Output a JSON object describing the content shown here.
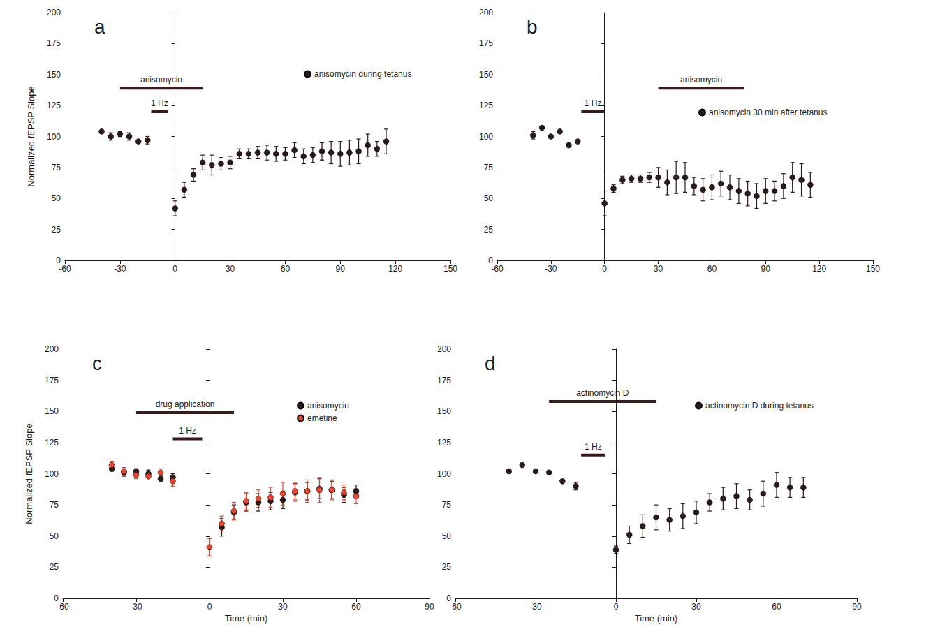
{
  "chart_data": [
    {
      "type": "scatter",
      "title": "a",
      "ylabel": "Normalized fEPSP Slope",
      "xlim": [
        -60,
        150
      ],
      "xticks": [
        -60,
        -30,
        0,
        30,
        60,
        90,
        120,
        150
      ],
      "ylim": [
        0,
        200
      ],
      "yticks": [
        0,
        25,
        50,
        75,
        100,
        125,
        150,
        175,
        200
      ],
      "grid": false,
      "legend": "upper right",
      "series": [
        {
          "name": "anisomycin during tetanus",
          "color": "#2b1a1a",
          "marker": "circle",
          "x": [
            -40,
            -35,
            -30,
            -25,
            -20,
            -15,
            0,
            5,
            10,
            15,
            20,
            25,
            30,
            35,
            40,
            45,
            50,
            55,
            60,
            65,
            70,
            75,
            80,
            85,
            90,
            95,
            100,
            105,
            110,
            115
          ],
          "values": [
            104,
            100,
            102,
            100,
            96,
            97,
            42,
            57,
            69,
            79,
            77,
            78,
            79,
            86,
            86,
            87,
            87,
            86,
            86,
            89,
            84,
            85,
            88,
            87,
            86,
            87,
            88,
            93,
            90,
            96
          ],
          "errors": [
            1,
            3,
            2,
            3,
            1,
            3,
            6,
            6,
            5,
            6,
            8,
            5,
            5,
            4,
            4,
            5,
            6,
            6,
            5,
            6,
            6,
            6,
            7,
            9,
            10,
            10,
            10,
            9,
            6,
            10
          ]
        }
      ],
      "annotations": [
        {
          "label": "anisomycin",
          "start": -30,
          "end": 15,
          "y": 139
        },
        {
          "label": "1 Hz",
          "start": -13,
          "end": -4,
          "y": 120
        }
      ]
    },
    {
      "type": "scatter",
      "title": "b",
      "xlim": [
        -60,
        150
      ],
      "xticks": [
        -60,
        -30,
        0,
        30,
        60,
        90,
        120,
        150
      ],
      "ylim": [
        0,
        200
      ],
      "yticks": [
        0,
        25,
        50,
        75,
        100,
        125,
        150,
        175,
        200
      ],
      "grid": false,
      "legend": "upper right",
      "series": [
        {
          "name": "anisomycin 30 min after tetanus",
          "color": "#2b1a1a",
          "marker": "circle",
          "x": [
            -40,
            -35,
            -30,
            -25,
            -20,
            -15,
            0,
            5,
            10,
            15,
            20,
            25,
            30,
            35,
            40,
            45,
            50,
            55,
            60,
            65,
            70,
            75,
            80,
            85,
            90,
            95,
            100,
            105,
            110,
            115
          ],
          "values": [
            101,
            107,
            100,
            104,
            93,
            96,
            46,
            58,
            65,
            66,
            66,
            67,
            67,
            63,
            67,
            67,
            60,
            57,
            59,
            62,
            59,
            56,
            54,
            52,
            56,
            56,
            60,
            67,
            65,
            61
          ],
          "errors": [
            3,
            1,
            1,
            1,
            1,
            1,
            10,
            3,
            3,
            3,
            3,
            4,
            8,
            10,
            13,
            12,
            7,
            9,
            10,
            10,
            10,
            10,
            10,
            10,
            10,
            8,
            10,
            12,
            13,
            10
          ]
        }
      ],
      "annotations": [
        {
          "label": "anisomycin",
          "start": 30,
          "end": 78,
          "y": 139
        },
        {
          "label": "1 Hz",
          "start": -13,
          "end": 0,
          "y": 120
        }
      ]
    },
    {
      "type": "scatter",
      "title": "c",
      "xlabel": "Time (min)",
      "ylabel": "Normalized fEPSP Slope",
      "xlim": [
        -60,
        90
      ],
      "xticks": [
        -60,
        -30,
        0,
        30,
        60,
        90
      ],
      "ylim": [
        0,
        200
      ],
      "yticks": [
        0,
        25,
        50,
        75,
        100,
        125,
        150,
        175,
        200
      ],
      "grid": false,
      "legend": "upper right",
      "series": [
        {
          "name": "anisomycin",
          "color": "#2b1a1a",
          "marker": "circle",
          "x": [
            -40,
            -35,
            -30,
            -25,
            -20,
            -15,
            0,
            5,
            10,
            15,
            20,
            25,
            30,
            35,
            40,
            45,
            50,
            55,
            60
          ],
          "values": [
            104,
            101,
            102,
            100,
            96,
            97,
            41,
            57,
            69,
            77,
            77,
            78,
            79,
            85,
            86,
            88,
            87,
            83,
            86
          ],
          "errors": [
            2,
            3,
            2,
            3,
            2,
            3,
            7,
            7,
            6,
            7,
            7,
            7,
            7,
            7,
            7,
            8,
            7,
            6,
            5
          ]
        },
        {
          "name": "emetine",
          "color": "#e8472e",
          "marker": "circle",
          "x": [
            -40,
            -35,
            -30,
            -25,
            -20,
            -15,
            0,
            5,
            10,
            15,
            20,
            25,
            30,
            35,
            40,
            45,
            50,
            55,
            60
          ],
          "values": [
            107,
            102,
            99,
            98,
            101,
            94,
            41,
            60,
            70,
            78,
            80,
            81,
            84,
            86,
            86,
            87,
            87,
            85,
            82
          ],
          "errors": [
            3,
            3,
            3,
            3,
            3,
            4,
            7,
            6,
            7,
            7,
            7,
            8,
            9,
            7,
            9,
            10,
            8,
            6,
            6
          ]
        }
      ],
      "annotations": [
        {
          "label": "drug application",
          "start": -30,
          "end": 10,
          "y": 149
        },
        {
          "label": "1 Hz",
          "start": -15,
          "end": -3,
          "y": 128
        }
      ]
    },
    {
      "type": "scatter",
      "title": "d",
      "xlabel": "Time (min)",
      "xlim": [
        -60,
        90
      ],
      "xticks": [
        -60,
        -30,
        0,
        30,
        60,
        90
      ],
      "ylim": [
        0,
        200
      ],
      "yticks": [
        0,
        25,
        50,
        75,
        100,
        125,
        150,
        175,
        200
      ],
      "grid": false,
      "legend": "upper right",
      "series": [
        {
          "name": "actinomycin D during tetanus",
          "color": "#2b1a1a",
          "marker": "circle",
          "x": [
            -40,
            -35,
            -30,
            -25,
            -20,
            -15,
            0,
            5,
            10,
            15,
            20,
            25,
            30,
            35,
            40,
            45,
            50,
            55,
            60,
            65,
            70
          ],
          "values": [
            102,
            107,
            102,
            101,
            94,
            90,
            39,
            51,
            58,
            65,
            63,
            66,
            69,
            77,
            80,
            82,
            79,
            84,
            91,
            89,
            89
          ],
          "errors": [
            1,
            1,
            1,
            1,
            1,
            3,
            3,
            7,
            9,
            10,
            9,
            10,
            9,
            7,
            9,
            10,
            8,
            10,
            10,
            8,
            8
          ]
        }
      ],
      "annotations": [
        {
          "label": "actinomycin D",
          "start": -25,
          "end": 15,
          "y": 158
        },
        {
          "label": "1 Hz",
          "start": -13,
          "end": -4,
          "y": 115
        }
      ]
    }
  ]
}
